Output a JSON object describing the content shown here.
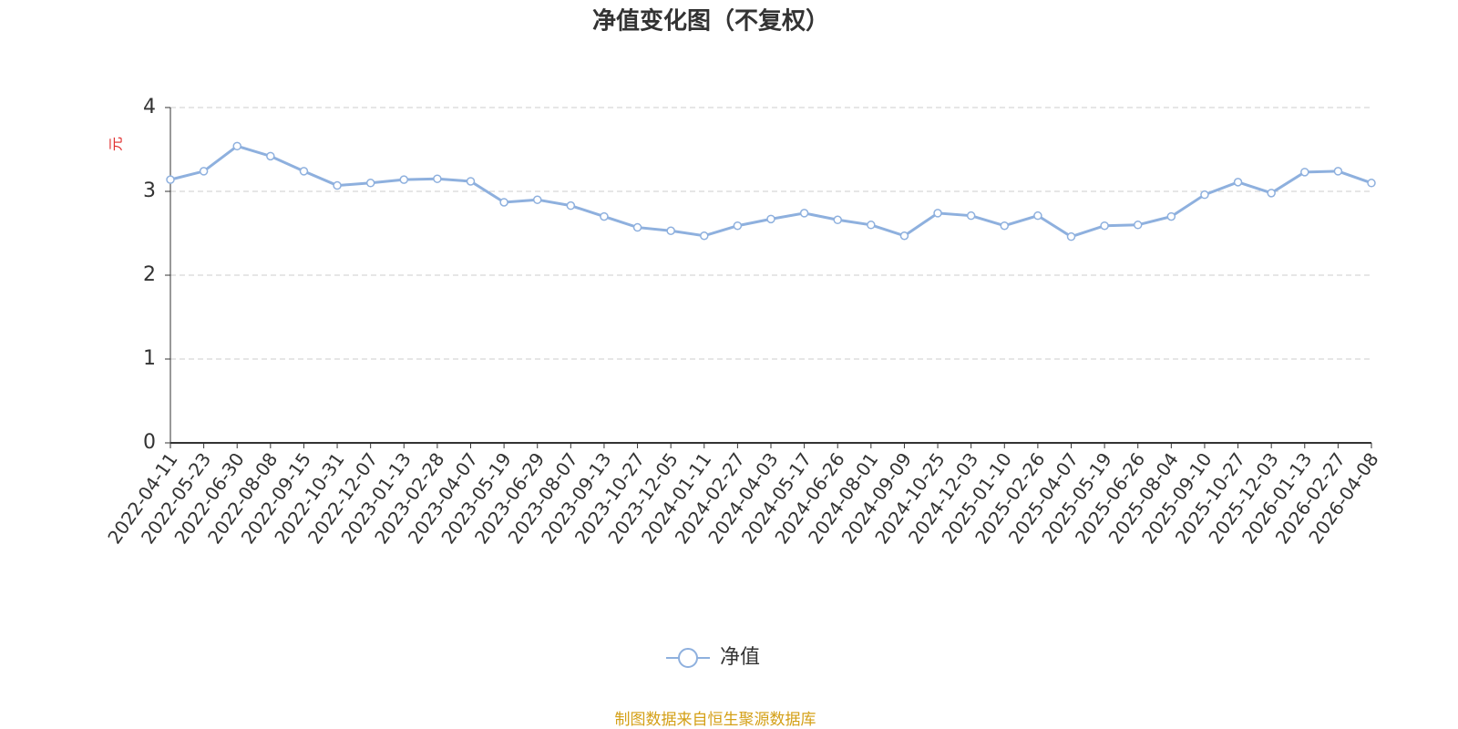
{
  "chart_data": {
    "type": "line",
    "title": "净值变化图（不复权）",
    "y_label": "元",
    "source": "制图数据来自恒生聚源数据库",
    "categories": [
      "2022-04-11",
      "2022-05-23",
      "2022-06-30",
      "2022-08-08",
      "2022-09-15",
      "2022-10-31",
      "2022-12-07",
      "2023-01-13",
      "2023-02-28",
      "2023-04-07",
      "2023-05-19",
      "2023-06-29",
      "2023-08-07",
      "2023-09-13",
      "2023-10-27",
      "2023-12-05",
      "2024-01-11",
      "2024-02-27",
      "2024-04-03",
      "2024-05-17",
      "2024-06-26",
      "2024-08-01",
      "2024-09-09",
      "2024-10-25",
      "2024-12-03",
      "2025-01-10",
      "2025-02-26",
      "2025-04-07",
      "2025-05-19",
      "2025-06-26",
      "2025-08-04",
      "2025-09-10",
      "2025-10-27",
      "2025-12-03",
      "2026-01-13",
      "2026-02-27",
      "2026-04-08"
    ],
    "series": [
      {
        "name": "净值",
        "color": "#8eb0de",
        "values": [
          3.14,
          3.24,
          3.54,
          3.42,
          3.24,
          3.07,
          3.1,
          3.14,
          3.15,
          3.12,
          2.87,
          2.9,
          2.83,
          2.7,
          2.57,
          2.53,
          2.47,
          2.59,
          2.67,
          2.74,
          2.66,
          2.6,
          2.47,
          2.74,
          2.71,
          2.59,
          2.71,
          2.46,
          2.59,
          2.6,
          2.7,
          2.96,
          3.11,
          2.98,
          3.23,
          3.24,
          3.1
        ]
      }
    ],
    "ylim": [
      0,
      4
    ],
    "yticks": [
      0,
      1,
      2,
      3,
      4
    ],
    "grid": true
  }
}
